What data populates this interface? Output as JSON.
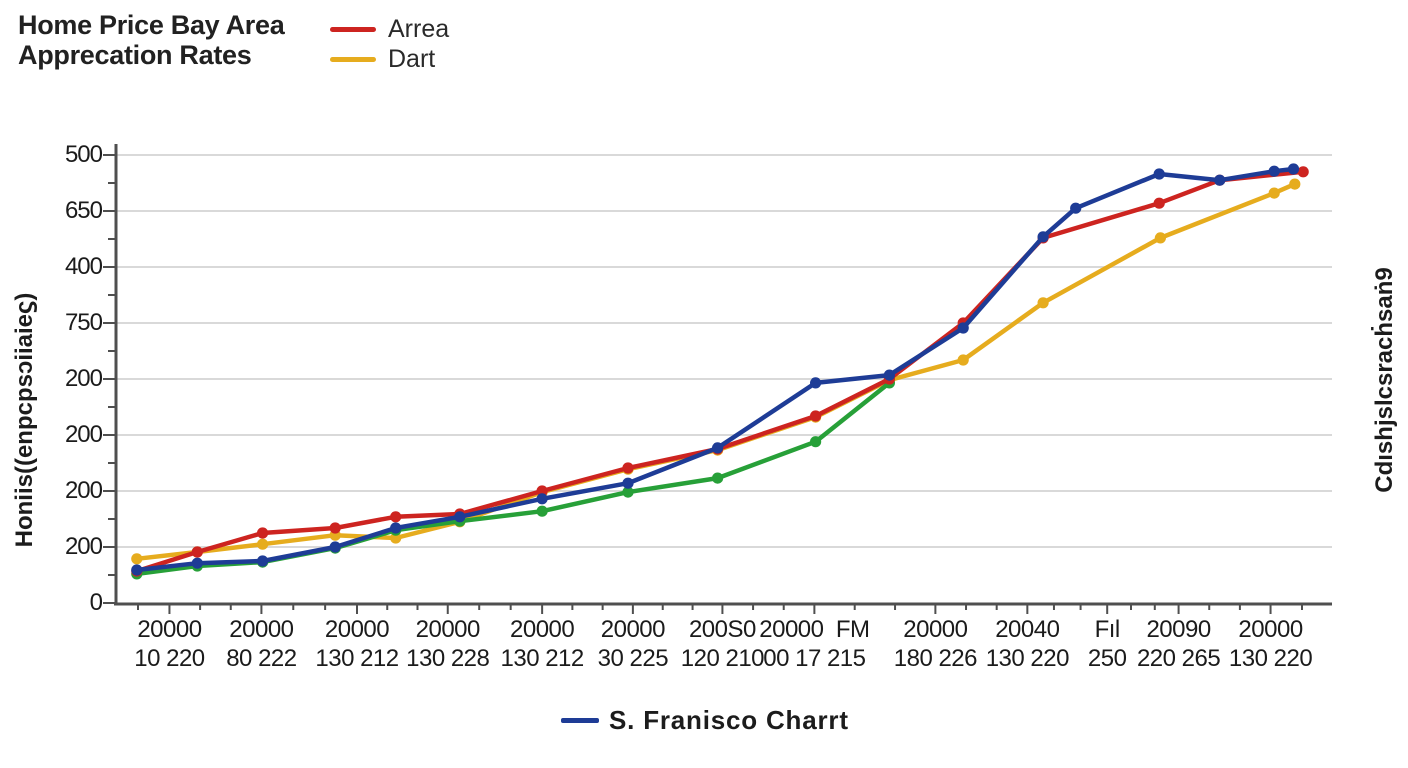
{
  "header": {
    "title_line1": "Home Price Bay Area",
    "title_line2": "Apprecation Rates"
  },
  "top_legend": {
    "items": [
      {
        "label": "Arrea",
        "color": "#cd2420"
      },
      {
        "label": "Dart",
        "color": "#e6ac1e"
      }
    ]
  },
  "bottom_legend": {
    "label": "S. Franisco Charrt",
    "color": "#1e3c96"
  },
  "y_axis_title": "Honiis((enpcpsɔiiaieϛ)",
  "right_axis_title": "Cdıshjslcsracḣsaṅ9",
  "chart_data": {
    "type": "line",
    "title": "Home Price Bay Area Apprecation Rates",
    "grid": true,
    "legend_position": "top-and-bottom",
    "colors": {
      "grid": "#d9d9d9",
      "axis": "#4f4f4f",
      "tick_text": "#1b1b1b"
    },
    "y_axis": {
      "tick_labels_top_to_bottom": [
        "500",
        "650",
        "400",
        "750",
        "200",
        "200",
        "200",
        "200",
        "0"
      ],
      "units_note": "y values below are in gridline units, 0 = bottom axis, 8 = top gridline"
    },
    "x_axis": {
      "columns": [
        {
          "x_frac": 0.045,
          "line1": "20000",
          "line2": "10 220"
        },
        {
          "x_frac": 0.121,
          "line1": "20000",
          "line2": "80 222"
        },
        {
          "x_frac": 0.2,
          "line1": "20000",
          "line2": "130 212"
        },
        {
          "x_frac": 0.275,
          "line1": "20000",
          "line2": "130 228"
        },
        {
          "x_frac": 0.353,
          "line1": "20000",
          "line2": "130 212"
        },
        {
          "x_frac": 0.428,
          "line1": "20000",
          "line2": "30 225"
        },
        {
          "x_frac": 0.502,
          "line1": "200S0",
          "line2": "120 210"
        },
        {
          "x_frac": 0.578,
          "line1": "20000  FM",
          "line2": "00 17 215"
        },
        {
          "x_frac": 0.678,
          "line1": "20000",
          "line2": "180 226"
        },
        {
          "x_frac": 0.754,
          "line1": "20040",
          "line2": "130 220"
        },
        {
          "x_frac": 0.82,
          "line1": "Fıl",
          "line2": "250"
        },
        {
          "x_frac": 0.879,
          "line1": "20090",
          "line2": "220 265"
        },
        {
          "x_frac": 0.955,
          "line1": "20000",
          "line2": "130 220"
        }
      ]
    },
    "point_format": "[x_fraction_of_plot_width, y_in_gridline_units]",
    "series": [
      {
        "name": "Dart",
        "color": "#e6ac1e",
        "points": [
          [
            0.018,
            0.79
          ],
          [
            0.068,
            0.91
          ],
          [
            0.122,
            1.05
          ],
          [
            0.182,
            1.21
          ],
          [
            0.232,
            1.16
          ],
          [
            0.285,
            1.45
          ],
          [
            0.353,
            1.98
          ],
          [
            0.424,
            2.39
          ],
          [
            0.498,
            2.73
          ],
          [
            0.579,
            3.32
          ],
          [
            0.64,
            3.98
          ],
          [
            0.701,
            4.34
          ],
          [
            0.767,
            5.36
          ],
          [
            0.864,
            6.52
          ],
          [
            0.958,
            7.32
          ],
          [
            0.975,
            7.48
          ]
        ]
      },
      {
        "name": "",
        "color": "#27a038",
        "points": [
          [
            0.018,
            0.52
          ],
          [
            0.068,
            0.66
          ],
          [
            0.122,
            0.73
          ],
          [
            0.182,
            0.98
          ],
          [
            0.232,
            1.3
          ],
          [
            0.285,
            1.46
          ],
          [
            0.353,
            1.64
          ],
          [
            0.424,
            1.98
          ],
          [
            0.498,
            2.23
          ],
          [
            0.579,
            2.88
          ],
          [
            0.64,
            3.93
          ]
        ]
      },
      {
        "name": "Arrea",
        "color": "#cd2420",
        "points": [
          [
            0.018,
            0.57
          ],
          [
            0.068,
            0.91
          ],
          [
            0.122,
            1.25
          ],
          [
            0.182,
            1.34
          ],
          [
            0.232,
            1.54
          ],
          [
            0.285,
            1.59
          ],
          [
            0.353,
            2.0
          ],
          [
            0.424,
            2.41
          ],
          [
            0.498,
            2.75
          ],
          [
            0.579,
            3.34
          ],
          [
            0.64,
            4.0
          ],
          [
            0.701,
            5.0
          ],
          [
            0.767,
            6.52
          ],
          [
            0.863,
            7.14
          ],
          [
            0.913,
            7.55
          ],
          [
            0.982,
            7.7
          ]
        ]
      },
      {
        "name": "S. Franisco Charrt",
        "color": "#1e3c96",
        "points": [
          [
            0.018,
            0.59
          ],
          [
            0.068,
            0.71
          ],
          [
            0.122,
            0.75
          ],
          [
            0.182,
            1.0
          ],
          [
            0.232,
            1.34
          ],
          [
            0.285,
            1.54
          ],
          [
            0.353,
            1.86
          ],
          [
            0.424,
            2.14
          ],
          [
            0.498,
            2.77
          ],
          [
            0.579,
            3.93
          ],
          [
            0.64,
            4.07
          ],
          [
            0.701,
            4.91
          ],
          [
            0.767,
            6.54
          ],
          [
            0.794,
            7.05
          ],
          [
            0.863,
            7.66
          ],
          [
            0.913,
            7.55
          ],
          [
            0.958,
            7.71
          ],
          [
            0.974,
            7.75
          ]
        ]
      }
    ]
  }
}
